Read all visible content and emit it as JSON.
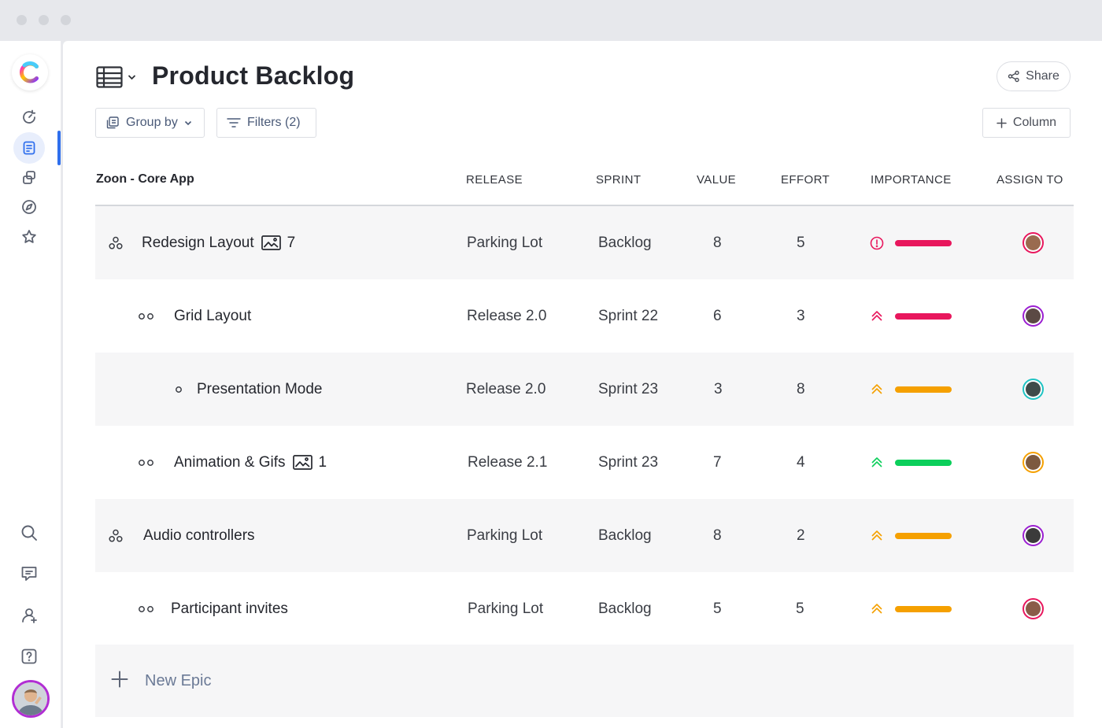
{
  "window": {
    "dots": [
      "close",
      "minimize",
      "maximize"
    ]
  },
  "sidebar": {
    "logo": "clickup-logo-icon",
    "top_items": [
      {
        "name": "home",
        "icon": "refresh-icon"
      },
      {
        "name": "notes",
        "icon": "note-icon",
        "active": true
      },
      {
        "name": "spaces",
        "icon": "layers-icon"
      },
      {
        "name": "explore",
        "icon": "compass-icon"
      },
      {
        "name": "favorites",
        "icon": "star-icon"
      }
    ],
    "bottom_items": [
      {
        "name": "search",
        "icon": "search-icon"
      },
      {
        "name": "messages",
        "icon": "chat-icon"
      },
      {
        "name": "invite",
        "icon": "add-user-icon"
      },
      {
        "name": "help",
        "icon": "help-icon"
      }
    ]
  },
  "header": {
    "title": "Product Backlog",
    "share_label": "Share",
    "group_by_label": "Group by",
    "filters_label": "Filters (2)",
    "column_label": "Column"
  },
  "table": {
    "project_label": "Zoon - Core App",
    "columns": {
      "release": "RELEASE",
      "sprint": "SPRINT",
      "value": "VALUE",
      "effort": "EFFORT",
      "importance": "IMPORTANCE",
      "assign_to": "ASSIGN TO"
    },
    "rows": [
      {
        "level": "epic",
        "name": "Redesign Layout",
        "attachments": "7",
        "release": "Parking Lot",
        "sprint": "Backlog",
        "value": "8",
        "effort": "5",
        "importance": "urgent",
        "importance_color": "#e8175d",
        "assignee_color": "#e8175d"
      },
      {
        "level": "story",
        "name": "Grid Layout",
        "attachments": "",
        "release": "Release 2.0",
        "sprint": "Sprint 22",
        "value": "6",
        "effort": "3",
        "importance": "high",
        "importance_color": "#e8175d",
        "assignee_color": "#9b1fd1"
      },
      {
        "level": "task",
        "name": "Presentation Mode",
        "attachments": "",
        "release": "Release 2.0",
        "sprint": "Sprint 23",
        "value": "3",
        "effort": "8",
        "importance": "high",
        "importance_color": "#f5a000",
        "assignee_color": "#1ec3c3"
      },
      {
        "level": "story",
        "name": "Animation & Gifs",
        "attachments": "1",
        "release": "Release 2.1",
        "sprint": "Sprint 23",
        "value": "7",
        "effort": "4",
        "importance": "high",
        "importance_color": "#0ccf5b",
        "assignee_color": "#f5a000"
      },
      {
        "level": "epic",
        "name": "Audio controllers",
        "attachments": "",
        "release": "Parking Lot",
        "sprint": "Backlog",
        "value": "8",
        "effort": "2",
        "importance": "high",
        "importance_color": "#f5a000",
        "assignee_color": "#9b1fd1"
      },
      {
        "level": "story",
        "name": "Participant invites",
        "attachments": "",
        "release": "Parking Lot",
        "sprint": "Backlog",
        "value": "5",
        "effort": "5",
        "importance": "high",
        "importance_color": "#f5a000",
        "assignee_color": "#e8175d"
      }
    ],
    "new_label": "New Epic"
  }
}
